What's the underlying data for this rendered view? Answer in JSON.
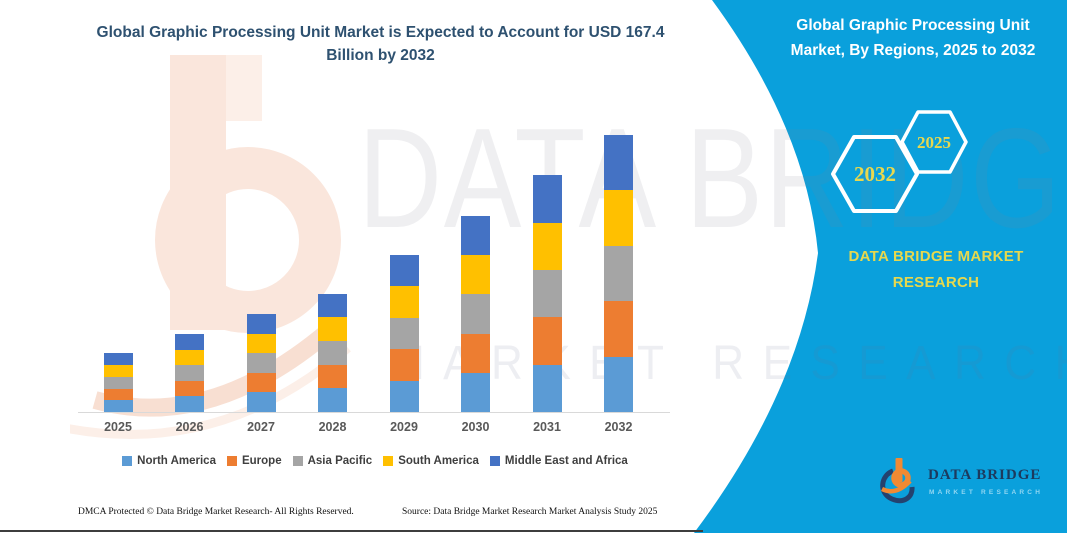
{
  "header": {
    "title_line1": "Global Graphic Processing Unit Market is Expected to Account for USD 167.4",
    "title_line2": "Billion by 2032"
  },
  "side_panel": {
    "heading_line1": "Global Graphic Processing Unit",
    "heading_line2": "Market, By Regions, 2025 to 2032",
    "hexagons": [
      {
        "label": "2032"
      },
      {
        "label": "2025"
      }
    ],
    "brand_line1": "DATA BRIDGE MARKET",
    "brand_line2": "RESEARCH",
    "panel_color": "#0AA0DC",
    "accent_text_color": "#E8D84E"
  },
  "watermark": {
    "line1": "DATA BRIDGE",
    "line2": "MARKET RESEARCH"
  },
  "chart_data": {
    "type": "bar",
    "stacked": true,
    "title": "Global Graphic Processing Unit Market, By Regions, 2025 to 2032",
    "unit": "USD Billion",
    "categories": [
      "2025",
      "2026",
      "2027",
      "2028",
      "2029",
      "2030",
      "2031",
      "2032"
    ],
    "series": [
      {
        "name": "North America",
        "color": "#5B9BD5",
        "values": [
          7.1,
          9.4,
          11.8,
          14.3,
          19.0,
          23.7,
          28.6,
          33.5
        ]
      },
      {
        "name": "Europe",
        "color": "#ED7D31",
        "values": [
          7.1,
          9.4,
          11.8,
          14.3,
          19.0,
          23.7,
          28.6,
          33.5
        ]
      },
      {
        "name": "Asia Pacific",
        "color": "#A5A5A5",
        "values": [
          7.1,
          9.4,
          11.8,
          14.3,
          19.0,
          23.7,
          28.6,
          33.5
        ]
      },
      {
        "name": "South America",
        "color": "#FFC000",
        "values": [
          7.1,
          9.4,
          11.8,
          14.3,
          19.0,
          23.7,
          28.6,
          33.5
        ]
      },
      {
        "name": "Middle East and Africa",
        "color": "#4472C4",
        "values": [
          7.0,
          9.5,
          12.0,
          14.1,
          18.9,
          23.6,
          28.8,
          33.4
        ]
      }
    ],
    "totals": [
      35.4,
      47.1,
      59.2,
      71.3,
      94.9,
      118.4,
      143.2,
      167.4
    ],
    "ylim": [
      0,
      170
    ],
    "grid": false,
    "axis_labels_shown": false,
    "legend_position": "bottom"
  },
  "footer": {
    "left": "DMCA Protected © Data Bridge Market Research-  All Rights Reserved.",
    "right": "Source: Data Bridge Market Research  Market Analysis Study 2025"
  },
  "logo": {
    "name_line": "DATA BRIDGE",
    "sub_line": "MARKET RESEARCH"
  }
}
